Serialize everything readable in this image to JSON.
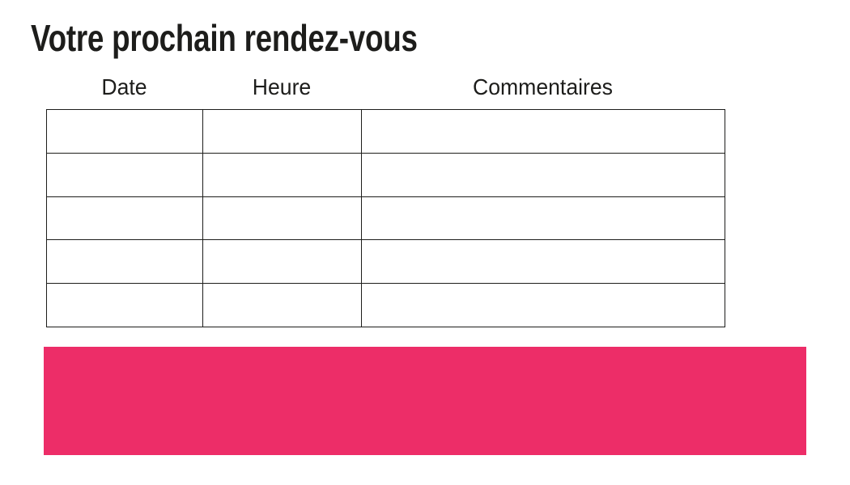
{
  "page": {
    "title": "Votre prochain rendez-vous"
  },
  "appointments_table": {
    "headers": [
      "Date",
      "Heure",
      "Commentaires"
    ],
    "rows": [
      {
        "date": "",
        "heure": "",
        "commentaires": ""
      },
      {
        "date": "",
        "heure": "",
        "commentaires": ""
      },
      {
        "date": "",
        "heure": "",
        "commentaires": ""
      },
      {
        "date": "",
        "heure": "",
        "commentaires": ""
      },
      {
        "date": "",
        "heure": "",
        "commentaires": ""
      }
    ]
  },
  "banner": {
    "label": ""
  },
  "colors": {
    "accent_pink": "#ED2D68",
    "text": "#1D1D1B",
    "table_border": "#1D1D1B"
  }
}
